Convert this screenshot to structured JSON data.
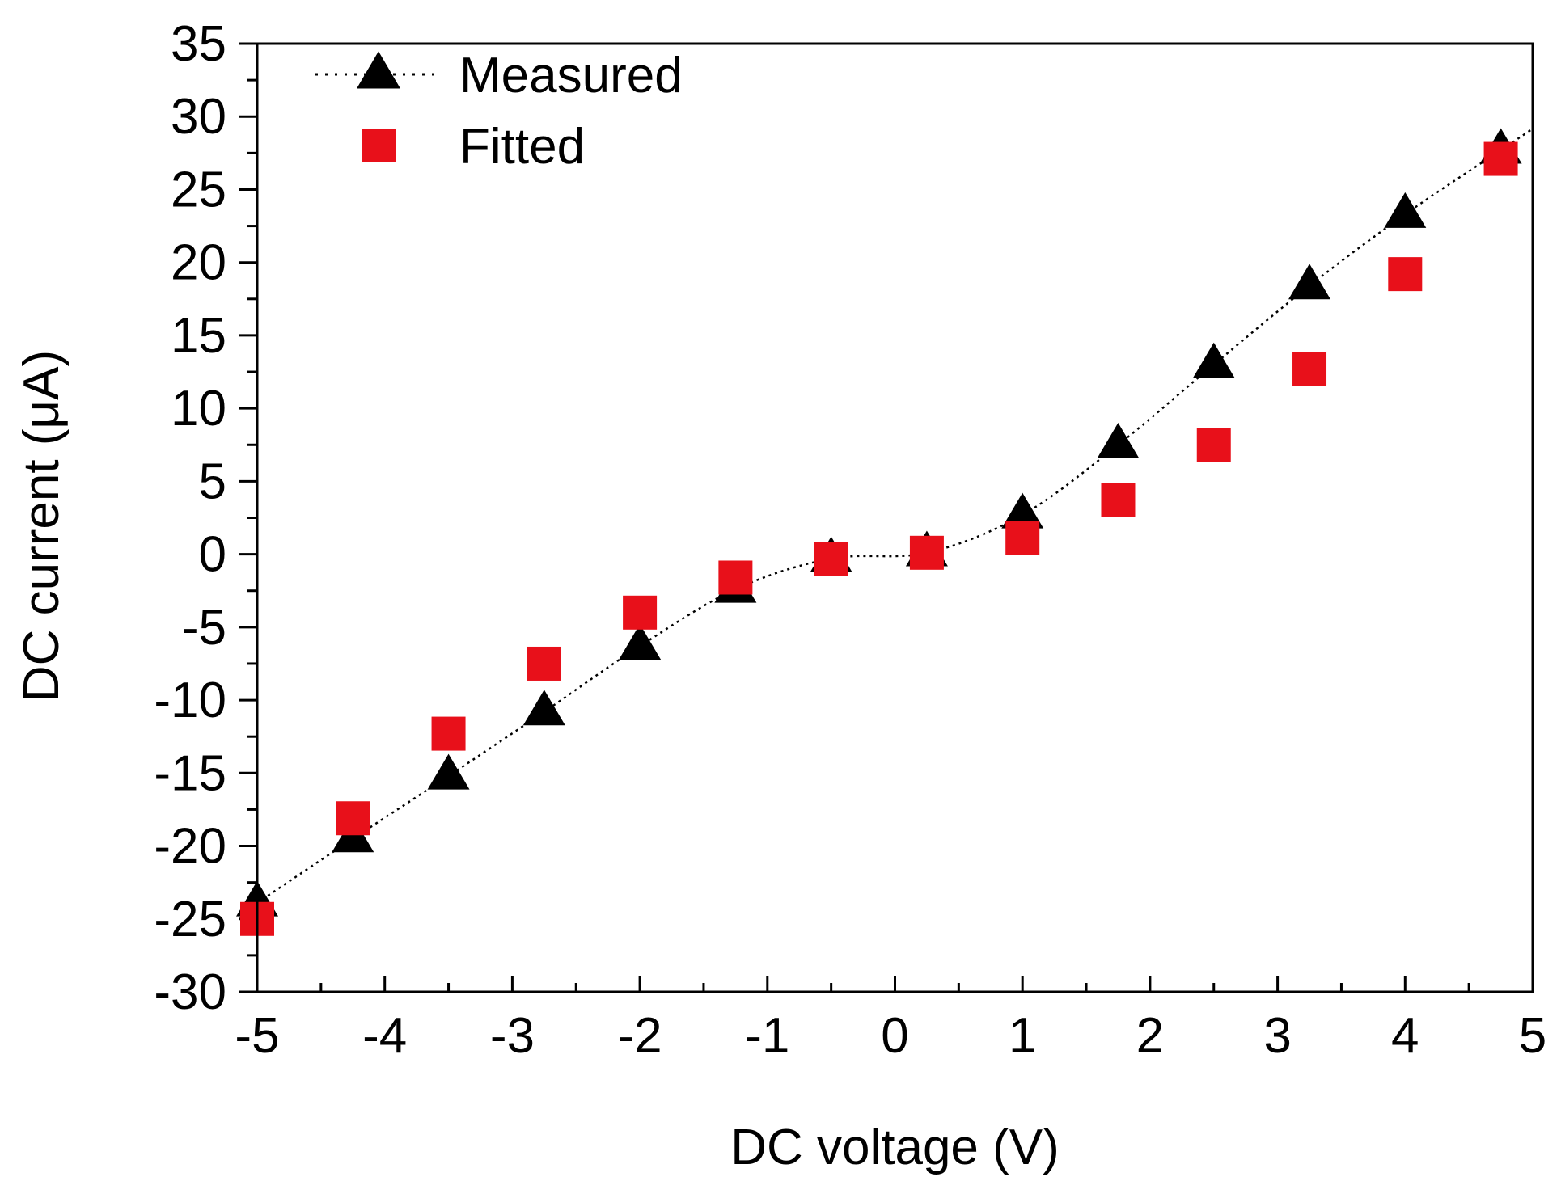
{
  "chart_data": {
    "type": "scatter",
    "title": "",
    "xlabel": "DC voltage (V)",
    "ylabel": "DC current (μA)",
    "xlim": [
      -5,
      5
    ],
    "ylim": [
      -30,
      35
    ],
    "x_ticks": [
      -5,
      -4,
      -3,
      -2,
      -1,
      0,
      1,
      2,
      3,
      4,
      5
    ],
    "y_ticks": [
      -30,
      -25,
      -20,
      -15,
      -10,
      -5,
      0,
      5,
      10,
      15,
      20,
      25,
      30,
      35
    ],
    "x_tick_labels": [
      "-5",
      "-4",
      "-3",
      "-2",
      "-1",
      "0",
      "1",
      "2",
      "3",
      "4",
      "5"
    ],
    "y_tick_labels": [
      "-30",
      "-25",
      "-20",
      "-15",
      "-10",
      "-5",
      "0",
      "5",
      "10",
      "15",
      "20",
      "25",
      "30",
      "35"
    ],
    "legend_position": "top-left",
    "series": [
      {
        "name": "Measured",
        "marker": "triangle",
        "color": "#000000",
        "line": "dotted",
        "x": [
          -5,
          -4.25,
          -3.5,
          -2.75,
          -2,
          -1.25,
          -0.5,
          0.25,
          1,
          1.75,
          2.5,
          3.25,
          4,
          4.75
        ],
        "y": [
          -23.9,
          -19.5,
          -15.2,
          -10.8,
          -6.3,
          -2.4,
          -0.3,
          0.1,
          2.7,
          7.5,
          13.0,
          18.4,
          23.3,
          27.7
        ]
      },
      {
        "name": "Fitted",
        "marker": "square",
        "color": "#e8101a",
        "line": "none",
        "x": [
          -5,
          -4.25,
          -3.5,
          -2.75,
          -2,
          -1.25,
          -0.5,
          0.25,
          1,
          1.75,
          2.5,
          3.25,
          4,
          4.75
        ],
        "y": [
          -25.0,
          -18.1,
          -12.3,
          -7.5,
          -4.0,
          -1.6,
          -0.3,
          0.1,
          1.1,
          3.7,
          7.5,
          12.7,
          19.2,
          27.1
        ]
      }
    ]
  }
}
